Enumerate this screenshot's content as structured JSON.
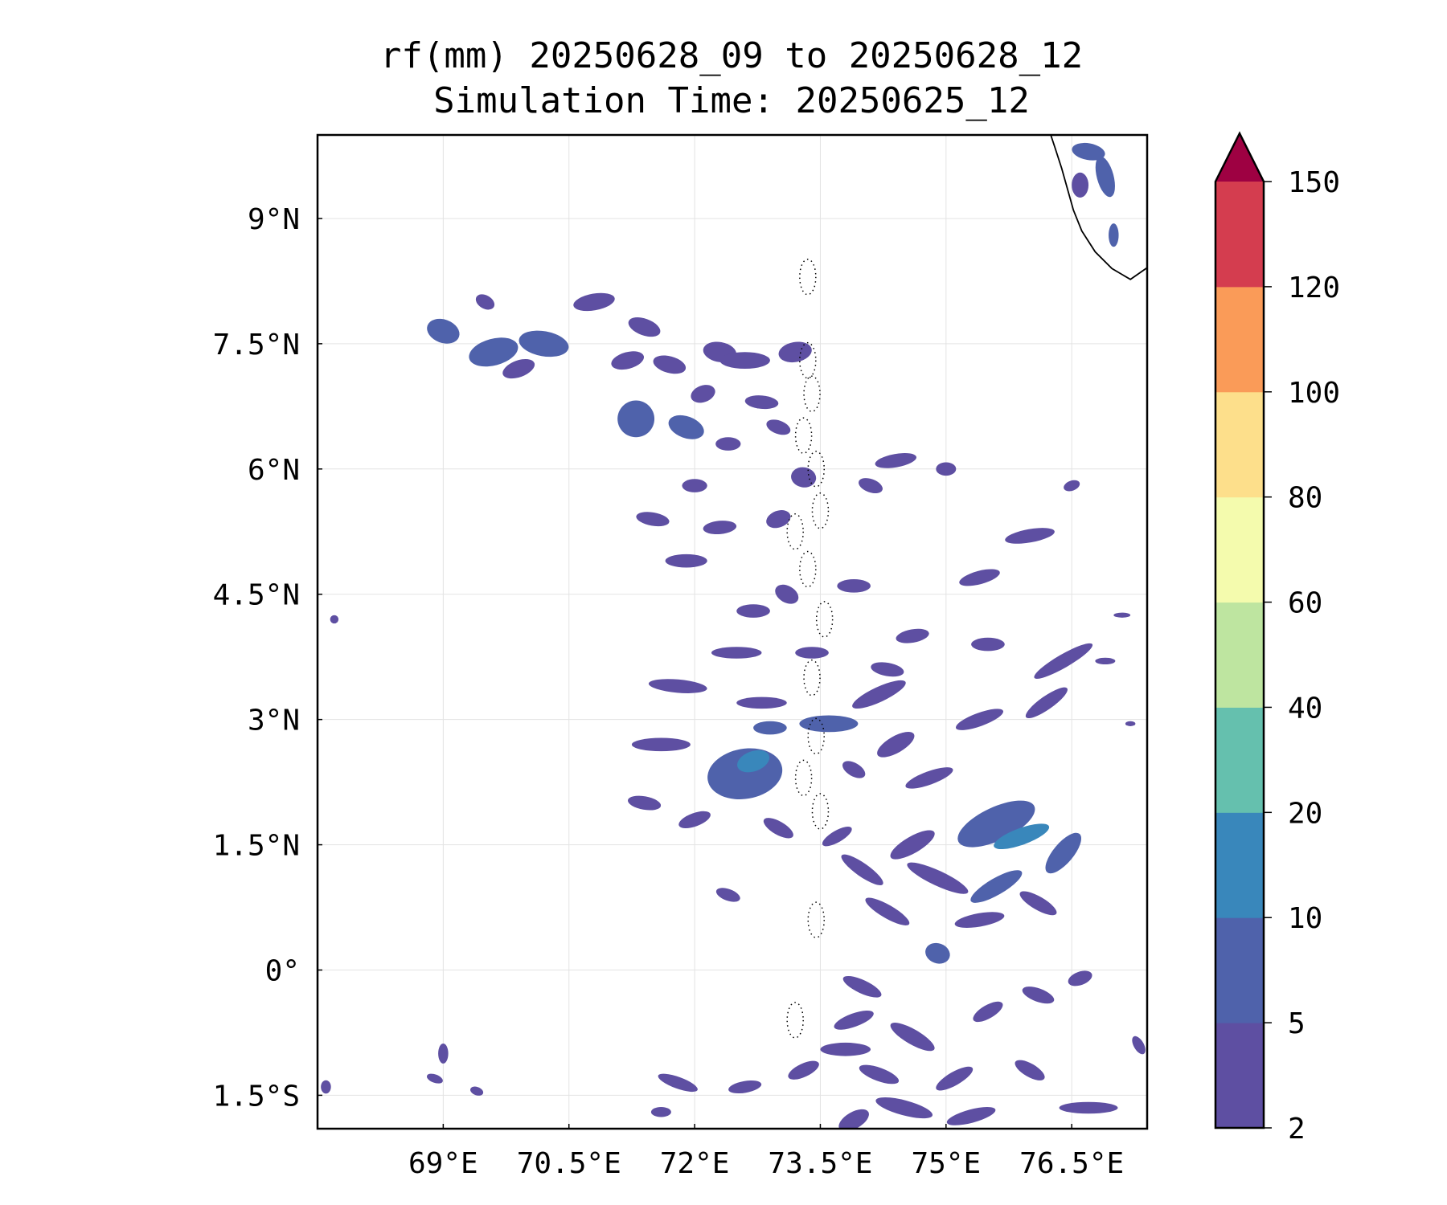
{
  "title_line1": "rf(mm) 20250628_09 to 20250628_12",
  "title_line2": "Simulation Time: 20250625_12",
  "map": {
    "lon_range": [
      67.5,
      77.4
    ],
    "lat_range": [
      -1.9,
      10.0
    ],
    "lon_ticks": [
      {
        "value": 69.0,
        "label": "69°E"
      },
      {
        "value": 70.5,
        "label": "70.5°E"
      },
      {
        "value": 72.0,
        "label": "72°E"
      },
      {
        "value": 73.5,
        "label": "73.5°E"
      },
      {
        "value": 75.0,
        "label": "75°E"
      },
      {
        "value": 76.5,
        "label": "76.5°E"
      }
    ],
    "lat_ticks": [
      {
        "value": 9.0,
        "label": "9°N"
      },
      {
        "value": 7.5,
        "label": "7.5°N"
      },
      {
        "value": 6.0,
        "label": "6°N"
      },
      {
        "value": 4.5,
        "label": "4.5°N"
      },
      {
        "value": 3.0,
        "label": "3°N"
      },
      {
        "value": 1.5,
        "label": "1.5°N"
      },
      {
        "value": 0.0,
        "label": "0°"
      },
      {
        "value": -1.5,
        "label": "1.5°S"
      }
    ],
    "gridlines": true,
    "coastline": [
      [
        76.25,
        10.0
      ],
      [
        76.3,
        9.85
      ],
      [
        76.38,
        9.6
      ],
      [
        76.45,
        9.35
      ],
      [
        76.52,
        9.1
      ],
      [
        76.62,
        8.85
      ],
      [
        76.78,
        8.6
      ],
      [
        76.98,
        8.4
      ],
      [
        77.2,
        8.27
      ],
      [
        77.4,
        8.41
      ]
    ],
    "rain_colors": {
      "2-5": "#5e4fa2",
      "5-10": "#4f62ab",
      "10-20": "#3987bb"
    },
    "rain_cells": [
      {
        "lon": 69.0,
        "lat": 7.65,
        "rx": 0.2,
        "ry": 0.14,
        "rot": 20,
        "level": "5-10"
      },
      {
        "lon": 69.6,
        "lat": 7.4,
        "rx": 0.3,
        "ry": 0.16,
        "rot": -15,
        "level": "5-10"
      },
      {
        "lon": 70.2,
        "lat": 7.5,
        "rx": 0.3,
        "ry": 0.15,
        "rot": 10,
        "level": "5-10"
      },
      {
        "lon": 69.9,
        "lat": 7.2,
        "rx": 0.2,
        "ry": 0.1,
        "rot": -20,
        "level": "2-5"
      },
      {
        "lon": 69.5,
        "lat": 8.0,
        "rx": 0.12,
        "ry": 0.08,
        "rot": 30,
        "level": "2-5"
      },
      {
        "lon": 70.8,
        "lat": 8.0,
        "rx": 0.25,
        "ry": 0.1,
        "rot": -10,
        "level": "2-5"
      },
      {
        "lon": 71.4,
        "lat": 7.7,
        "rx": 0.2,
        "ry": 0.1,
        "rot": 20,
        "level": "2-5"
      },
      {
        "lon": 71.2,
        "lat": 7.3,
        "rx": 0.2,
        "ry": 0.1,
        "rot": -15,
        "level": "2-5"
      },
      {
        "lon": 71.7,
        "lat": 7.25,
        "rx": 0.2,
        "ry": 0.1,
        "rot": 15,
        "level": "2-5"
      },
      {
        "lon": 72.3,
        "lat": 7.4,
        "rx": 0.2,
        "ry": 0.12,
        "rot": 10,
        "level": "2-5"
      },
      {
        "lon": 71.3,
        "lat": 6.6,
        "rx": 0.22,
        "ry": 0.22,
        "rot": 0,
        "level": "5-10"
      },
      {
        "lon": 71.9,
        "lat": 6.5,
        "rx": 0.22,
        "ry": 0.13,
        "rot": 20,
        "level": "5-10"
      },
      {
        "lon": 72.1,
        "lat": 6.9,
        "rx": 0.15,
        "ry": 0.1,
        "rot": -20,
        "level": "2-5"
      },
      {
        "lon": 72.6,
        "lat": 7.3,
        "rx": 0.3,
        "ry": 0.1,
        "rot": 0,
        "level": "2-5"
      },
      {
        "lon": 73.2,
        "lat": 7.4,
        "rx": 0.2,
        "ry": 0.12,
        "rot": -10,
        "level": "2-5"
      },
      {
        "lon": 72.8,
        "lat": 6.8,
        "rx": 0.2,
        "ry": 0.08,
        "rot": 5,
        "level": "2-5"
      },
      {
        "lon": 72.4,
        "lat": 6.3,
        "rx": 0.15,
        "ry": 0.08,
        "rot": 0,
        "level": "2-5"
      },
      {
        "lon": 73.0,
        "lat": 6.5,
        "rx": 0.15,
        "ry": 0.08,
        "rot": 20,
        "level": "2-5"
      },
      {
        "lon": 72.0,
        "lat": 5.8,
        "rx": 0.15,
        "ry": 0.08,
        "rot": 0,
        "level": "2-5"
      },
      {
        "lon": 71.5,
        "lat": 5.4,
        "rx": 0.2,
        "ry": 0.08,
        "rot": 10,
        "level": "2-5"
      },
      {
        "lon": 72.3,
        "lat": 5.3,
        "rx": 0.2,
        "ry": 0.08,
        "rot": -5,
        "level": "2-5"
      },
      {
        "lon": 71.9,
        "lat": 4.9,
        "rx": 0.25,
        "ry": 0.08,
        "rot": 0,
        "level": "2-5"
      },
      {
        "lon": 73.3,
        "lat": 5.9,
        "rx": 0.15,
        "ry": 0.12,
        "rot": 10,
        "level": "2-5"
      },
      {
        "lon": 74.4,
        "lat": 6.1,
        "rx": 0.25,
        "ry": 0.08,
        "rot": -10,
        "level": "2-5"
      },
      {
        "lon": 75.0,
        "lat": 6.0,
        "rx": 0.12,
        "ry": 0.08,
        "rot": 0,
        "level": "2-5"
      },
      {
        "lon": 74.1,
        "lat": 5.8,
        "rx": 0.15,
        "ry": 0.08,
        "rot": 20,
        "level": "2-5"
      },
      {
        "lon": 73.0,
        "lat": 5.4,
        "rx": 0.15,
        "ry": 0.1,
        "rot": -20,
        "level": "2-5"
      },
      {
        "lon": 76.0,
        "lat": 5.2,
        "rx": 0.3,
        "ry": 0.08,
        "rot": -10,
        "level": "2-5"
      },
      {
        "lon": 72.7,
        "lat": 4.3,
        "rx": 0.2,
        "ry": 0.08,
        "rot": 0,
        "level": "2-5"
      },
      {
        "lon": 73.1,
        "lat": 4.5,
        "rx": 0.15,
        "ry": 0.1,
        "rot": 30,
        "level": "2-5"
      },
      {
        "lon": 73.9,
        "lat": 4.6,
        "rx": 0.2,
        "ry": 0.08,
        "rot": 0,
        "level": "2-5"
      },
      {
        "lon": 75.4,
        "lat": 4.7,
        "rx": 0.25,
        "ry": 0.08,
        "rot": -15,
        "level": "2-5"
      },
      {
        "lon": 74.6,
        "lat": 4.0,
        "rx": 0.2,
        "ry": 0.08,
        "rot": -10,
        "level": "2-5"
      },
      {
        "lon": 75.5,
        "lat": 3.9,
        "rx": 0.2,
        "ry": 0.08,
        "rot": 0,
        "level": "2-5"
      },
      {
        "lon": 72.5,
        "lat": 3.8,
        "rx": 0.3,
        "ry": 0.07,
        "rot": 0,
        "level": "2-5"
      },
      {
        "lon": 73.4,
        "lat": 3.8,
        "rx": 0.2,
        "ry": 0.07,
        "rot": 0,
        "level": "2-5"
      },
      {
        "lon": 74.3,
        "lat": 3.6,
        "rx": 0.2,
        "ry": 0.08,
        "rot": 10,
        "level": "2-5"
      },
      {
        "lon": 76.4,
        "lat": 3.7,
        "rx": 0.4,
        "ry": 0.08,
        "rot": -30,
        "level": "2-5"
      },
      {
        "lon": 71.8,
        "lat": 3.4,
        "rx": 0.35,
        "ry": 0.08,
        "rot": 5,
        "level": "2-5"
      },
      {
        "lon": 72.8,
        "lat": 3.2,
        "rx": 0.3,
        "ry": 0.07,
        "rot": 0,
        "level": "2-5"
      },
      {
        "lon": 74.2,
        "lat": 3.3,
        "rx": 0.35,
        "ry": 0.09,
        "rot": -25,
        "level": "2-5"
      },
      {
        "lon": 73.6,
        "lat": 2.95,
        "rx": 0.35,
        "ry": 0.1,
        "rot": 0,
        "level": "5-10"
      },
      {
        "lon": 72.9,
        "lat": 2.9,
        "rx": 0.2,
        "ry": 0.08,
        "rot": 0,
        "level": "5-10"
      },
      {
        "lon": 75.4,
        "lat": 3.0,
        "rx": 0.3,
        "ry": 0.08,
        "rot": -20,
        "level": "2-5"
      },
      {
        "lon": 76.2,
        "lat": 3.2,
        "rx": 0.3,
        "ry": 0.08,
        "rot": -35,
        "level": "2-5"
      },
      {
        "lon": 71.6,
        "lat": 2.7,
        "rx": 0.35,
        "ry": 0.08,
        "rot": 0,
        "level": "2-5"
      },
      {
        "lon": 72.6,
        "lat": 2.35,
        "rx": 0.45,
        "ry": 0.3,
        "rot": -10,
        "level": "5-10"
      },
      {
        "lon": 72.7,
        "lat": 2.5,
        "rx": 0.2,
        "ry": 0.12,
        "rot": -20,
        "level": "10-20"
      },
      {
        "lon": 74.4,
        "lat": 2.7,
        "rx": 0.25,
        "ry": 0.1,
        "rot": -30,
        "level": "2-5"
      },
      {
        "lon": 74.8,
        "lat": 2.3,
        "rx": 0.3,
        "ry": 0.08,
        "rot": -20,
        "level": "2-5"
      },
      {
        "lon": 73.9,
        "lat": 2.4,
        "rx": 0.15,
        "ry": 0.08,
        "rot": 30,
        "level": "2-5"
      },
      {
        "lon": 71.4,
        "lat": 2.0,
        "rx": 0.2,
        "ry": 0.08,
        "rot": 10,
        "level": "2-5"
      },
      {
        "lon": 72.0,
        "lat": 1.8,
        "rx": 0.2,
        "ry": 0.08,
        "rot": -20,
        "level": "2-5"
      },
      {
        "lon": 73.0,
        "lat": 1.7,
        "rx": 0.2,
        "ry": 0.08,
        "rot": 30,
        "level": "2-5"
      },
      {
        "lon": 75.6,
        "lat": 1.75,
        "rx": 0.5,
        "ry": 0.2,
        "rot": -25,
        "level": "5-10"
      },
      {
        "lon": 75.9,
        "lat": 1.6,
        "rx": 0.35,
        "ry": 0.1,
        "rot": -20,
        "level": "10-20"
      },
      {
        "lon": 76.4,
        "lat": 1.4,
        "rx": 0.3,
        "ry": 0.12,
        "rot": -50,
        "level": "5-10"
      },
      {
        "lon": 74.6,
        "lat": 1.5,
        "rx": 0.3,
        "ry": 0.1,
        "rot": -30,
        "level": "2-5"
      },
      {
        "lon": 74.9,
        "lat": 1.1,
        "rx": 0.4,
        "ry": 0.09,
        "rot": 25,
        "level": "2-5"
      },
      {
        "lon": 75.6,
        "lat": 1.0,
        "rx": 0.35,
        "ry": 0.1,
        "rot": -30,
        "level": "5-10"
      },
      {
        "lon": 74.0,
        "lat": 1.2,
        "rx": 0.3,
        "ry": 0.08,
        "rot": 35,
        "level": "2-5"
      },
      {
        "lon": 73.7,
        "lat": 1.6,
        "rx": 0.2,
        "ry": 0.07,
        "rot": -30,
        "level": "2-5"
      },
      {
        "lon": 74.3,
        "lat": 0.7,
        "rx": 0.3,
        "ry": 0.08,
        "rot": 30,
        "level": "2-5"
      },
      {
        "lon": 75.4,
        "lat": 0.6,
        "rx": 0.3,
        "ry": 0.08,
        "rot": -10,
        "level": "2-5"
      },
      {
        "lon": 76.1,
        "lat": 0.8,
        "rx": 0.25,
        "ry": 0.08,
        "rot": 30,
        "level": "2-5"
      },
      {
        "lon": 72.4,
        "lat": 0.9,
        "rx": 0.15,
        "ry": 0.07,
        "rot": 20,
        "level": "2-5"
      },
      {
        "lon": 74.9,
        "lat": 0.2,
        "rx": 0.15,
        "ry": 0.12,
        "rot": 20,
        "level": "5-10"
      },
      {
        "lon": 74.0,
        "lat": -0.2,
        "rx": 0.25,
        "ry": 0.08,
        "rot": 25,
        "level": "2-5"
      },
      {
        "lon": 73.9,
        "lat": -0.6,
        "rx": 0.25,
        "ry": 0.08,
        "rot": -20,
        "level": "2-5"
      },
      {
        "lon": 74.6,
        "lat": -0.8,
        "rx": 0.3,
        "ry": 0.09,
        "rot": 30,
        "level": "2-5"
      },
      {
        "lon": 73.8,
        "lat": -0.95,
        "rx": 0.3,
        "ry": 0.08,
        "rot": 0,
        "level": "2-5"
      },
      {
        "lon": 75.5,
        "lat": -0.5,
        "rx": 0.2,
        "ry": 0.08,
        "rot": -30,
        "level": "2-5"
      },
      {
        "lon": 76.1,
        "lat": -0.3,
        "rx": 0.2,
        "ry": 0.08,
        "rot": 20,
        "level": "2-5"
      },
      {
        "lon": 76.6,
        "lat": -0.1,
        "rx": 0.15,
        "ry": 0.08,
        "rot": -20,
        "level": "2-5"
      },
      {
        "lon": 73.3,
        "lat": -1.2,
        "rx": 0.2,
        "ry": 0.08,
        "rot": -25,
        "level": "2-5"
      },
      {
        "lon": 74.2,
        "lat": -1.25,
        "rx": 0.25,
        "ry": 0.08,
        "rot": 20,
        "level": "2-5"
      },
      {
        "lon": 75.1,
        "lat": -1.3,
        "rx": 0.25,
        "ry": 0.08,
        "rot": -30,
        "level": "2-5"
      },
      {
        "lon": 76.0,
        "lat": -1.2,
        "rx": 0.2,
        "ry": 0.08,
        "rot": 30,
        "level": "2-5"
      },
      {
        "lon": 71.8,
        "lat": -1.35,
        "rx": 0.25,
        "ry": 0.07,
        "rot": 20,
        "level": "2-5"
      },
      {
        "lon": 72.6,
        "lat": -1.4,
        "rx": 0.2,
        "ry": 0.07,
        "rot": -10,
        "level": "2-5"
      },
      {
        "lon": 74.5,
        "lat": -1.65,
        "rx": 0.35,
        "ry": 0.09,
        "rot": 15,
        "level": "2-5"
      },
      {
        "lon": 75.3,
        "lat": -1.75,
        "rx": 0.3,
        "ry": 0.08,
        "rot": -15,
        "level": "2-5"
      },
      {
        "lon": 76.7,
        "lat": -1.65,
        "rx": 0.35,
        "ry": 0.07,
        "rot": 0,
        "level": "2-5"
      },
      {
        "lon": 73.9,
        "lat": -1.8,
        "rx": 0.2,
        "ry": 0.1,
        "rot": -30,
        "level": "2-5"
      },
      {
        "lon": 71.6,
        "lat": -1.7,
        "rx": 0.12,
        "ry": 0.06,
        "rot": 0,
        "level": "2-5"
      },
      {
        "lon": 69.0,
        "lat": -1.0,
        "rx": 0.06,
        "ry": 0.12,
        "rot": 0,
        "level": "2-5"
      },
      {
        "lon": 67.6,
        "lat": -1.4,
        "rx": 0.06,
        "ry": 0.08,
        "rot": 0,
        "level": "2-5"
      },
      {
        "lon": 68.9,
        "lat": -1.3,
        "rx": 0.1,
        "ry": 0.05,
        "rot": 20,
        "level": "2-5"
      },
      {
        "lon": 69.4,
        "lat": -1.45,
        "rx": 0.08,
        "ry": 0.05,
        "rot": 20,
        "level": "2-5"
      },
      {
        "lon": 67.7,
        "lat": 4.2,
        "rx": 0.05,
        "ry": 0.05,
        "rot": 0,
        "level": "2-5"
      },
      {
        "lon": 77.3,
        "lat": -0.9,
        "rx": 0.06,
        "ry": 0.12,
        "rot": -30,
        "level": "2-5"
      },
      {
        "lon": 76.9,
        "lat": 9.5,
        "rx": 0.1,
        "ry": 0.25,
        "rot": -15,
        "level": "5-10"
      },
      {
        "lon": 76.7,
        "lat": 9.8,
        "rx": 0.2,
        "ry": 0.1,
        "rot": 10,
        "level": "5-10"
      },
      {
        "lon": 76.6,
        "lat": 9.4,
        "rx": 0.1,
        "ry": 0.15,
        "rot": 0,
        "level": "2-5"
      },
      {
        "lon": 77.0,
        "lat": 8.8,
        "rx": 0.06,
        "ry": 0.14,
        "rot": 0,
        "level": "5-10"
      },
      {
        "lon": 76.5,
        "lat": 5.8,
        "rx": 0.1,
        "ry": 0.06,
        "rot": -20,
        "level": "2-5"
      },
      {
        "lon": 76.9,
        "lat": 3.7,
        "rx": 0.12,
        "ry": 0.04,
        "rot": 0,
        "level": "2-5"
      },
      {
        "lon": 77.1,
        "lat": 4.25,
        "rx": 0.1,
        "ry": 0.03,
        "rot": 0,
        "level": "2-5"
      },
      {
        "lon": 77.2,
        "lat": 2.95,
        "rx": 0.06,
        "ry": 0.03,
        "rot": 0,
        "level": "2-5"
      }
    ],
    "atolls": [
      [
        73.35,
        8.3
      ],
      [
        73.35,
        7.3
      ],
      [
        73.4,
        6.9
      ],
      [
        73.3,
        6.4
      ],
      [
        73.45,
        6.0
      ],
      [
        73.5,
        5.5
      ],
      [
        73.2,
        5.25
      ],
      [
        73.35,
        4.8
      ],
      [
        73.55,
        4.2
      ],
      [
        73.4,
        3.5
      ],
      [
        73.45,
        2.8
      ],
      [
        73.3,
        2.3
      ],
      [
        73.5,
        1.9
      ],
      [
        73.45,
        0.6
      ],
      [
        73.2,
        -0.6
      ]
    ]
  },
  "colorbar": {
    "boundaries": [
      2,
      5,
      10,
      20,
      40,
      60,
      80,
      100,
      120,
      150
    ],
    "labels": [
      "2",
      "5",
      "10",
      "20",
      "40",
      "60",
      "80",
      "100",
      "120",
      "150"
    ],
    "colors": [
      "#5e4fa2",
      "#4f62ab",
      "#3987bb",
      "#65c0ae",
      "#bee5a0",
      "#f4fbad",
      "#fddf8b",
      "#fa9b58",
      "#d43d4f"
    ],
    "extend_color": "#9e0142",
    "extend": "max"
  }
}
